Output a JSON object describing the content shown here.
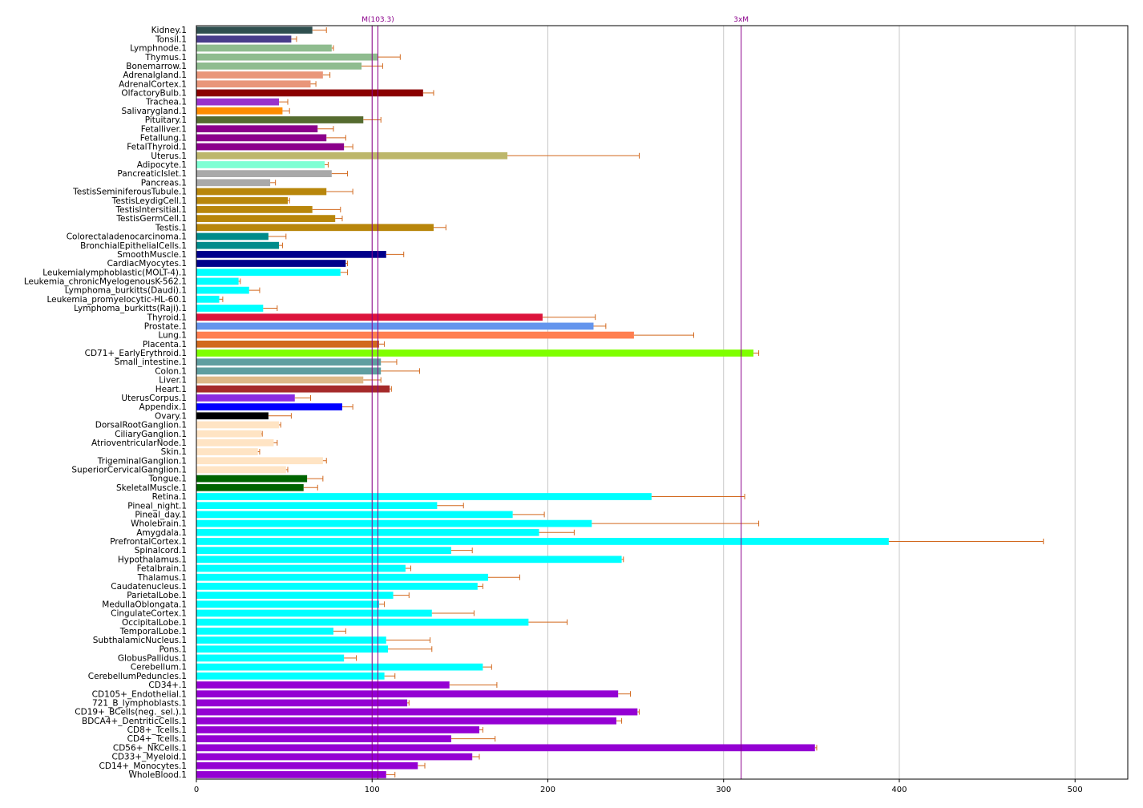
{
  "chart_data": {
    "type": "bar",
    "orientation": "horizontal",
    "title": "",
    "xlabel": "",
    "ylabel": "",
    "xlim": [
      0,
      530
    ],
    "xticks": [
      0,
      100,
      200,
      300,
      400,
      500
    ],
    "grid": "vertical",
    "reference_lines": [
      {
        "label": "M(103.3)",
        "value": 103.3,
        "color": "#8b008b"
      },
      {
        "label": "",
        "value": 100,
        "color": "#8b008b"
      },
      {
        "label": "3xM",
        "value": 310,
        "color": "#8b008b"
      }
    ],
    "bars": [
      {
        "category": "Kidney.1",
        "value": 66,
        "error": 8,
        "color": "#2f4f4f"
      },
      {
        "category": "Tonsil.1",
        "value": 54,
        "error": 3,
        "color": "#483d8b"
      },
      {
        "category": "Lymphnode.1",
        "value": 77,
        "error": 1,
        "color": "#8fbc8f"
      },
      {
        "category": "Thymus.1",
        "value": 103,
        "error": 13,
        "color": "#8fbc8f"
      },
      {
        "category": "Bonemarrow.1",
        "value": 94,
        "error": 12,
        "color": "#8fbc8f"
      },
      {
        "category": "Adrenalgland.1",
        "value": 72,
        "error": 4,
        "color": "#e9967a"
      },
      {
        "category": "AdrenalCortex.1",
        "value": 65,
        "error": 3,
        "color": "#e9967a"
      },
      {
        "category": "OlfactoryBulb.1",
        "value": 129,
        "error": 6,
        "color": "#8b0000"
      },
      {
        "category": "Trachea.1",
        "value": 47,
        "error": 5,
        "color": "#9932cc"
      },
      {
        "category": "Salivarygland.1",
        "value": 49,
        "error": 4,
        "color": "#ff8c00"
      },
      {
        "category": "Pituitary.1",
        "value": 95,
        "error": 10,
        "color": "#556b2f"
      },
      {
        "category": "Fetalliver.1",
        "value": 69,
        "error": 9,
        "color": "#8b008b"
      },
      {
        "category": "Fetallung.1",
        "value": 74,
        "error": 11,
        "color": "#8b008b"
      },
      {
        "category": "FetalThyroid.1",
        "value": 84,
        "error": 5,
        "color": "#8b008b"
      },
      {
        "category": "Uterus.1",
        "value": 177,
        "error": 75,
        "color": "#bdb76b"
      },
      {
        "category": "Adipocyte.1",
        "value": 73,
        "error": 2,
        "color": "#7fffd4"
      },
      {
        "category": "PancreaticIslet.1",
        "value": 77,
        "error": 9,
        "color": "#a9a9a9"
      },
      {
        "category": "Pancreas.1",
        "value": 42,
        "error": 3,
        "color": "#a9a9a9"
      },
      {
        "category": "TestisSeminiferousTubule.1",
        "value": 74,
        "error": 15,
        "color": "#b8860b"
      },
      {
        "category": "TestisLeydigCell.1",
        "value": 52,
        "error": 1,
        "color": "#b8860b"
      },
      {
        "category": "TestisIntersitial.1",
        "value": 66,
        "error": 16,
        "color": "#b8860b"
      },
      {
        "category": "TestisGermCell.1",
        "value": 79,
        "error": 4,
        "color": "#b8860b"
      },
      {
        "category": "Testis.1",
        "value": 135,
        "error": 7,
        "color": "#b8860b"
      },
      {
        "category": "Colorectaladenocarcinoma.1",
        "value": 41,
        "error": 10,
        "color": "#008b8b"
      },
      {
        "category": "BronchialEpithelialCells.1",
        "value": 47,
        "error": 2,
        "color": "#008b8b"
      },
      {
        "category": "SmoothMuscle.1",
        "value": 108,
        "error": 10,
        "color": "#00008b"
      },
      {
        "category": "CardiacMyocytes.1",
        "value": 85,
        "error": 1,
        "color": "#00008b"
      },
      {
        "category": "Leukemialymphoblastic(MOLT-4).1",
        "value": 82,
        "error": 4,
        "color": "#00ffff"
      },
      {
        "category": "Leukemia_chronicMyelogenousK-562.1",
        "value": 24,
        "error": 1,
        "color": "#00ffff"
      },
      {
        "category": "Lymphoma_burkitts(Daudi).1",
        "value": 30,
        "error": 6,
        "color": "#00ffff"
      },
      {
        "category": "Leukemia_promyelocytic-HL-60.1",
        "value": 13,
        "error": 2,
        "color": "#00ffff"
      },
      {
        "category": "Lymphoma_burkitts(Raji).1",
        "value": 38,
        "error": 8,
        "color": "#00ffff"
      },
      {
        "category": "Thyroid.1",
        "value": 197,
        "error": 30,
        "color": "#dc143c"
      },
      {
        "category": "Prostate.1",
        "value": 226,
        "error": 7,
        "color": "#6495ed"
      },
      {
        "category": "Lung.1",
        "value": 249,
        "error": 34,
        "color": "#ff7f50"
      },
      {
        "category": "Placenta.1",
        "value": 104,
        "error": 3,
        "color": "#d2691e"
      },
      {
        "category": "CD71+_EarlyErythroid.1",
        "value": 317,
        "error": 3,
        "color": "#7fff00"
      },
      {
        "category": "Small_intestine.1",
        "value": 105,
        "error": 9,
        "color": "#5f9ea0"
      },
      {
        "category": "Colon.1",
        "value": 105,
        "error": 22,
        "color": "#5f9ea0"
      },
      {
        "category": "Liver.1",
        "value": 95,
        "error": 10,
        "color": "#deb887"
      },
      {
        "category": "Heart.1",
        "value": 110,
        "error": 1,
        "color": "#a52a2a"
      },
      {
        "category": "UterusCorpus.1",
        "value": 56,
        "error": 9,
        "color": "#8a2be2"
      },
      {
        "category": "Appendix.1",
        "value": 83,
        "error": 6,
        "color": "#0000ff"
      },
      {
        "category": "Ovary.1",
        "value": 41,
        "error": 13,
        "color": "#000000"
      },
      {
        "category": "DorsalRootGanglion.1",
        "value": 47,
        "error": 1,
        "color": "#ffe4c4"
      },
      {
        "category": "CiliaryGanglion.1",
        "value": 37,
        "error": 0.5,
        "color": "#ffe4c4"
      },
      {
        "category": "AtrioventricularNode.1",
        "value": 44,
        "error": 2,
        "color": "#ffe4c4"
      },
      {
        "category": "Skin.1",
        "value": 35,
        "error": 1,
        "color": "#ffe4c4"
      },
      {
        "category": "TrigeminalGanglion.1",
        "value": 72,
        "error": 2,
        "color": "#ffe4c4"
      },
      {
        "category": "SuperiorCervicalGanglion.1",
        "value": 51,
        "error": 1,
        "color": "#ffe4c4"
      },
      {
        "category": "Tongue.1",
        "value": 63,
        "error": 9,
        "color": "#006400"
      },
      {
        "category": "SkeletalMuscle.1",
        "value": 61,
        "error": 8,
        "color": "#006400"
      },
      {
        "category": "Retina.1",
        "value": 259,
        "error": 53,
        "color": "#00ffff"
      },
      {
        "category": "Pineal_night.1",
        "value": 137,
        "error": 15,
        "color": "#00ffff"
      },
      {
        "category": "Pineal_day.1",
        "value": 180,
        "error": 18,
        "color": "#00ffff"
      },
      {
        "category": "Wholebrain.1",
        "value": 225,
        "error": 95,
        "color": "#00ffff"
      },
      {
        "category": "Amygdala.1",
        "value": 195,
        "error": 20,
        "color": "#00ffff"
      },
      {
        "category": "PrefrontalCortex.1",
        "value": 394,
        "error": 88,
        "color": "#00ffff"
      },
      {
        "category": "Spinalcord.1",
        "value": 145,
        "error": 12,
        "color": "#00ffff"
      },
      {
        "category": "Hypothalamus.1",
        "value": 242,
        "error": 1,
        "color": "#00ffff"
      },
      {
        "category": "Fetalbrain.1",
        "value": 119,
        "error": 3,
        "color": "#00ffff"
      },
      {
        "category": "Thalamus.1",
        "value": 166,
        "error": 18,
        "color": "#00ffff"
      },
      {
        "category": "Caudatenucleus.1",
        "value": 160,
        "error": 3,
        "color": "#00ffff"
      },
      {
        "category": "ParietalLobe.1",
        "value": 112,
        "error": 9,
        "color": "#00ffff"
      },
      {
        "category": "MedullaOblongata.1",
        "value": 104,
        "error": 3,
        "color": "#00ffff"
      },
      {
        "category": "CingulateCortex.1",
        "value": 134,
        "error": 24,
        "color": "#00ffff"
      },
      {
        "category": "OccipitalLobe.1",
        "value": 189,
        "error": 22,
        "color": "#00ffff"
      },
      {
        "category": "TemporalLobe.1",
        "value": 78,
        "error": 7,
        "color": "#00ffff"
      },
      {
        "category": "SubthalamicNucleus.1",
        "value": 108,
        "error": 25,
        "color": "#00ffff"
      },
      {
        "category": "Pons.1",
        "value": 109,
        "error": 25,
        "color": "#00ffff"
      },
      {
        "category": "GlobusPallidus.1",
        "value": 84,
        "error": 7,
        "color": "#00ffff"
      },
      {
        "category": "Cerebellum.1",
        "value": 163,
        "error": 5,
        "color": "#00ffff"
      },
      {
        "category": "CerebellumPeduncles.1",
        "value": 107,
        "error": 6,
        "color": "#00ffff"
      },
      {
        "category": "CD34+.1",
        "value": 144,
        "error": 27,
        "color": "#9400d3"
      },
      {
        "category": "CD105+_Endothelial.1",
        "value": 240,
        "error": 7,
        "color": "#9400d3"
      },
      {
        "category": "721_B_lymphoblasts.1",
        "value": 120,
        "error": 1,
        "color": "#9400d3"
      },
      {
        "category": "CD19+_BCells(neg._sel.).1",
        "value": 251,
        "error": 1,
        "color": "#9400d3"
      },
      {
        "category": "BDCA4+_DentriticCells.1",
        "value": 239,
        "error": 3,
        "color": "#9400d3"
      },
      {
        "category": "CD8+_Tcells.1",
        "value": 161,
        "error": 2,
        "color": "#9400d3"
      },
      {
        "category": "CD4+_Tcells.1",
        "value": 145,
        "error": 25,
        "color": "#9400d3"
      },
      {
        "category": "CD56+_NKCells.1",
        "value": 352,
        "error": 1,
        "color": "#9400d3"
      },
      {
        "category": "CD33+_Myeloid.1",
        "value": 157,
        "error": 4,
        "color": "#9400d3"
      },
      {
        "category": "CD14+_Monocytes.1",
        "value": 126,
        "error": 4,
        "color": "#9400d3"
      },
      {
        "category": "WholeBlood.1",
        "value": 108,
        "error": 5,
        "color": "#9400d3"
      }
    ]
  }
}
